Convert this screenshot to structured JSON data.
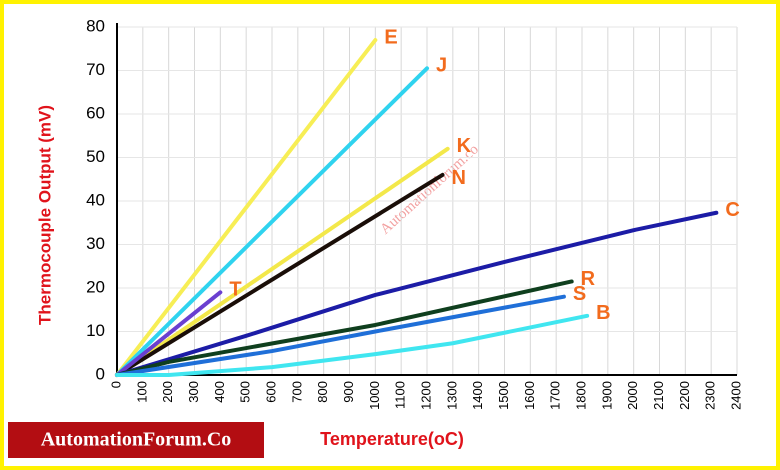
{
  "chart_data": {
    "type": "line",
    "y_label": "Thermocouple Output (mV)",
    "x_label": "Temperature(oC)",
    "watermark": "Automationforum.co",
    "credit": "AutomationForum.Co",
    "xlim": [
      0,
      2400
    ],
    "xticks": [
      0,
      100,
      200,
      300,
      400,
      500,
      600,
      700,
      800,
      900,
      1000,
      1100,
      1200,
      1300,
      1400,
      1500,
      1600,
      1700,
      1800,
      1900,
      2000,
      2100,
      2200,
      2300,
      2400
    ],
    "ylim": [
      0,
      80
    ],
    "yticks": [
      0,
      10,
      20,
      30,
      40,
      50,
      60,
      70,
      80
    ],
    "grid": true,
    "series": [
      {
        "name": "E",
        "color": "#f7ee55",
        "x": [
          0,
          1000
        ],
        "values": [
          0,
          77
        ]
      },
      {
        "name": "J",
        "color": "#2fd3ef",
        "x": [
          0,
          1200
        ],
        "values": [
          0,
          70.5
        ]
      },
      {
        "name": "K",
        "color": "#f3e84a",
        "x": [
          0,
          1280
        ],
        "values": [
          0,
          52
        ]
      },
      {
        "name": "N",
        "color": "#1a0e08",
        "x": [
          0,
          1260
        ],
        "values": [
          0,
          46
        ]
      },
      {
        "name": "T",
        "color": "#6a3fd0",
        "x": [
          0,
          400
        ],
        "values": [
          0,
          19
        ]
      },
      {
        "name": "C",
        "color": "#1c1ca6",
        "x": [
          0,
          500,
          1000,
          1500,
          2000,
          2320
        ],
        "values": [
          0,
          9,
          18.4,
          26,
          33.3,
          37.3
        ]
      },
      {
        "name": "R",
        "color": "#0f3f1e",
        "x": [
          0,
          200,
          1000,
          1760
        ],
        "values": [
          0,
          3,
          11.5,
          21.5
        ]
      },
      {
        "name": "S",
        "color": "#1f6fd8",
        "x": [
          0,
          600,
          1000,
          1730
        ],
        "values": [
          0,
          5.5,
          10,
          18
        ]
      },
      {
        "name": "B",
        "color": "#40e6f0",
        "x": [
          0,
          200,
          600,
          1000,
          1300,
          1820
        ],
        "values": [
          0,
          0,
          1.8,
          4.8,
          7.3,
          13.6
        ]
      }
    ]
  }
}
